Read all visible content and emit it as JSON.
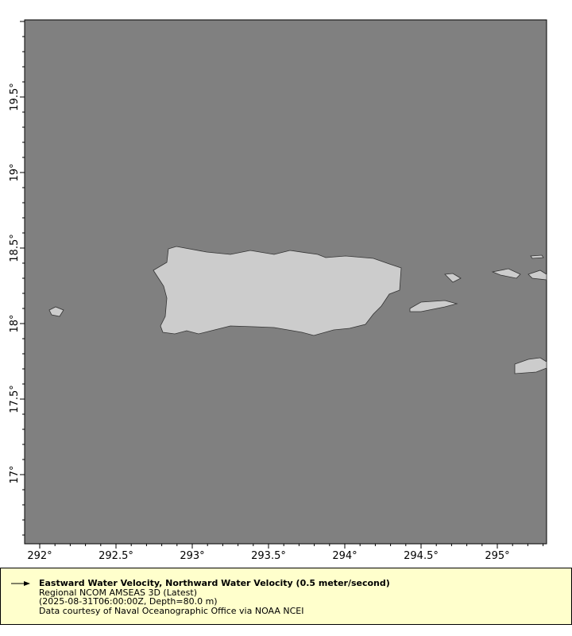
{
  "map": {
    "background_color": "#808080",
    "land_color": "#cccccc",
    "x_ticks": [
      "292°",
      "292.5°",
      "293°",
      "293.5°",
      "294°",
      "294.5°",
      "295°"
    ],
    "y_ticks": [
      "19.5°",
      "19°",
      "18.5°",
      "18°",
      "17.5°",
      "17°"
    ]
  },
  "legend": {
    "arrow_icon": "vector-arrow",
    "title": "Eastward Water Velocity, Northward Water Velocity (0.5 meter/second)",
    "dataset": "Regional NCOM AMSEAS 3D (Latest)",
    "time_depth": "(2025-08-31T06:00:00Z, Depth=80.0 m)",
    "credit": "Data courtesy of Naval Oceanographic Office via NOAA NCEI"
  }
}
